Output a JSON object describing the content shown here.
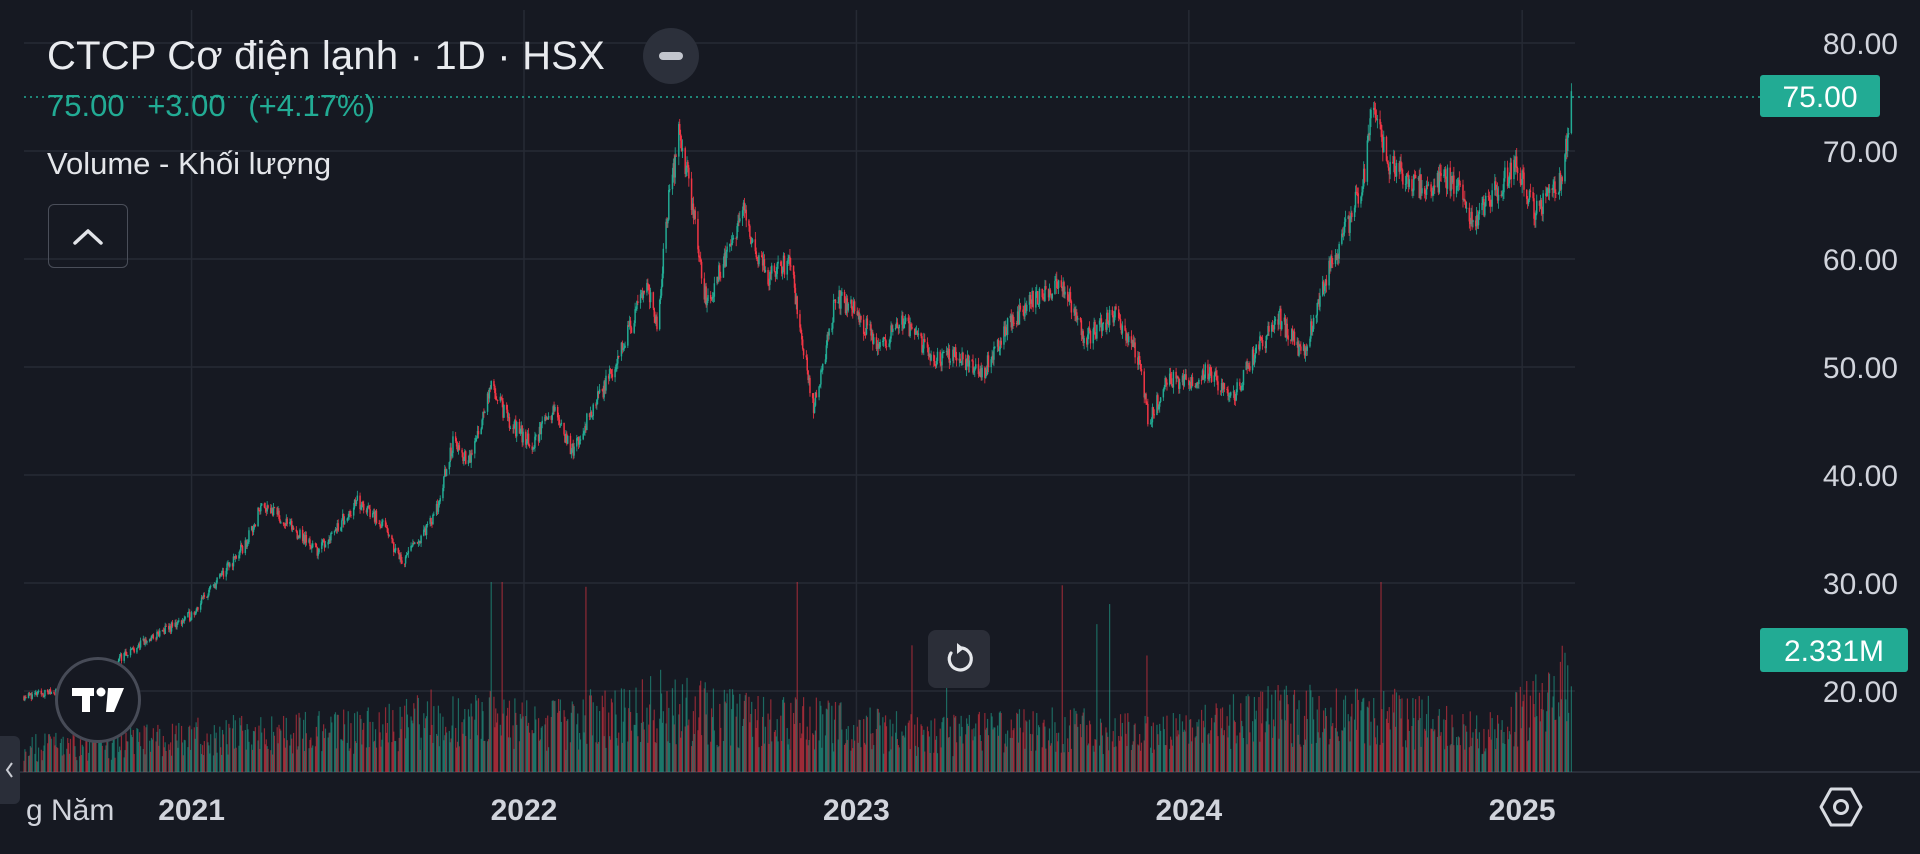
{
  "header": {
    "title": "CTCP Cơ điện lạnh · 1D · HSX",
    "last": "75.00",
    "change": "+3.00",
    "change_pct": "(+4.17%)",
    "volume_label": "Volume - Khối lượng"
  },
  "price_axis": {
    "ticks": [
      "80.00",
      "70.00",
      "60.00",
      "50.00",
      "40.00",
      "30.00",
      "20.00"
    ],
    "last_price_label": "75.00",
    "last_volume_label": "2.331M"
  },
  "time_axis": {
    "ticks": [
      "2021",
      "2022",
      "2023",
      "2024",
      "2025"
    ],
    "left_label": "g Năm"
  },
  "icons": {
    "hide": "minus-icon",
    "collapse": "chevron-up-icon",
    "reset": "reset-arrow-icon",
    "logo": "tradingview-logo",
    "settings": "settings-hexagon-icon",
    "left_tab": "chevron-left-icon"
  },
  "colors": {
    "background": "#161922",
    "up": "#22ab94",
    "down": "#f23645",
    "grid": "#262a34",
    "text": "#d1d4dc",
    "price_tag": "#22ab94"
  },
  "chart_data": {
    "type": "candlestick",
    "symbol": "CTCP Cơ điện lạnh",
    "interval": "1D",
    "exchange": "HSX",
    "x_range": [
      "2020-07",
      "2025-02"
    ],
    "y_range": [
      13,
      83
    ],
    "y_ticks": [
      20,
      30,
      40,
      50,
      60,
      70,
      80
    ],
    "last_close": 75.0,
    "change": 3.0,
    "change_pct": 4.17,
    "last_volume": "2.331M",
    "volume_max_millions": 4.0,
    "grid": true,
    "price_path": [
      [
        "2020-07-01",
        19.5
      ],
      [
        "2020-09-15",
        20.5
      ],
      [
        "2020-10-20",
        23.5
      ],
      [
        "2020-12-01",
        25.5
      ],
      [
        "2020-12-31",
        27.0
      ],
      [
        "2021-02-01",
        30.5
      ],
      [
        "2021-03-01",
        33.5
      ],
      [
        "2021-03-20",
        37.5
      ],
      [
        "2021-04-15",
        35.5
      ],
      [
        "2021-05-20",
        33.0
      ],
      [
        "2021-07-01",
        37.5
      ],
      [
        "2021-07-25",
        36.0
      ],
      [
        "2021-08-20",
        32.0
      ],
      [
        "2021-09-25",
        36.0
      ],
      [
        "2021-10-15",
        43.0
      ],
      [
        "2021-11-01",
        41.0
      ],
      [
        "2021-11-25",
        48.0
      ],
      [
        "2021-12-20",
        44.5
      ],
      [
        "2022-01-10",
        43.0
      ],
      [
        "2022-02-05",
        46.0
      ],
      [
        "2022-02-22",
        42.0
      ],
      [
        "2022-03-20",
        46.5
      ],
      [
        "2022-04-05",
        49.0
      ],
      [
        "2022-04-25",
        53.0
      ],
      [
        "2022-05-15",
        58.0
      ],
      [
        "2022-05-28",
        53.0
      ],
      [
        "2022-06-05",
        63.0
      ],
      [
        "2022-06-20",
        71.5
      ],
      [
        "2022-07-01",
        67.0
      ],
      [
        "2022-07-20",
        56.0
      ],
      [
        "2022-08-05",
        59.0
      ],
      [
        "2022-08-30",
        64.5
      ],
      [
        "2022-09-25",
        58.0
      ],
      [
        "2022-10-20",
        60.0
      ],
      [
        "2022-11-15",
        46.0
      ],
      [
        "2022-12-10",
        56.5
      ],
      [
        "2022-12-31",
        55.0
      ],
      [
        "2023-01-25",
        52.0
      ],
      [
        "2023-02-20",
        54.0
      ],
      [
        "2023-03-25",
        51.0
      ],
      [
        "2023-04-20",
        51.0
      ],
      [
        "2023-05-20",
        49.5
      ],
      [
        "2023-06-15",
        53.5
      ],
      [
        "2023-07-10",
        56.0
      ],
      [
        "2023-08-15",
        58.0
      ],
      [
        "2023-09-10",
        52.5
      ],
      [
        "2023-10-10",
        55.0
      ],
      [
        "2023-11-05",
        51.5
      ],
      [
        "2023-11-18",
        45.0
      ],
      [
        "2023-12-10",
        49.0
      ],
      [
        "2023-12-31",
        48.5
      ],
      [
        "2024-01-20",
        49.5
      ],
      [
        "2024-02-20",
        47.5
      ],
      [
        "2024-03-15",
        51.5
      ],
      [
        "2024-04-10",
        54.5
      ],
      [
        "2024-05-05",
        51.0
      ],
      [
        "2024-05-25",
        57.0
      ],
      [
        "2024-06-25",
        63.5
      ],
      [
        "2024-07-10",
        67.0
      ],
      [
        "2024-07-22",
        74.5
      ],
      [
        "2024-08-05",
        69.0
      ],
      [
        "2024-08-25",
        67.5
      ],
      [
        "2024-09-15",
        66.5
      ],
      [
        "2024-10-15",
        67.5
      ],
      [
        "2024-11-10",
        63.5
      ],
      [
        "2024-11-30",
        66.0
      ],
      [
        "2024-12-25",
        68.5
      ],
      [
        "2025-01-15",
        64.5
      ],
      [
        "2025-02-05",
        66.5
      ],
      [
        "2025-02-15",
        68.0
      ],
      [
        "2025-02-24",
        75.0
      ]
    ],
    "volume_path": [
      [
        "2020-07-01",
        0.6
      ],
      [
        "2020-10-01",
        0.7
      ],
      [
        "2021-01-01",
        0.9
      ],
      [
        "2021-06-01",
        1.0
      ],
      [
        "2021-10-01",
        1.4
      ],
      [
        "2022-02-01",
        1.2
      ],
      [
        "2022-06-01",
        1.7
      ],
      [
        "2022-09-01",
        1.3
      ],
      [
        "2022-12-01",
        1.2
      ],
      [
        "2023-04-01",
        0.9
      ],
      [
        "2023-08-01",
        1.1
      ],
      [
        "2023-12-01",
        0.9
      ],
      [
        "2024-04-01",
        1.5
      ],
      [
        "2024-08-01",
        1.4
      ],
      [
        "2024-12-01",
        1.0
      ],
      [
        "2025-02-24",
        2.3
      ]
    ],
    "notable_peaks": [
      [
        "2022-06-20",
        73.0
      ],
      [
        "2022-11-15",
        43.5
      ],
      [
        "2023-11-18",
        44.0
      ],
      [
        "2024-07-22",
        75.5
      ],
      [
        "2025-02-24",
        76.0
      ]
    ]
  }
}
